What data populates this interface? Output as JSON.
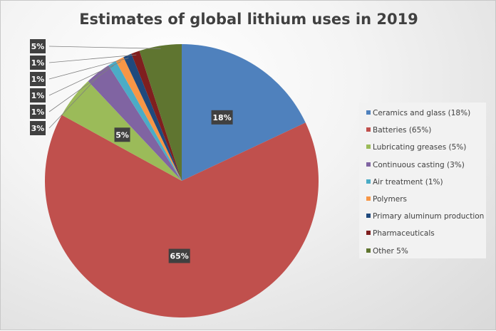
{
  "chart_data": {
    "type": "pie",
    "title": "Estimates of global lithium uses in 2019",
    "start": "top",
    "direction": "clockwise",
    "legend_position": "right",
    "slices": [
      {
        "name": "Ceramics and glass (18%)",
        "value": 18,
        "label": "18%",
        "color": "#4f81bd"
      },
      {
        "name": "Batteries (65%)",
        "value": 65,
        "label": "65%",
        "color": "#c0504d"
      },
      {
        "name": "Lubricating greases (5%)",
        "value": 5,
        "label": "5%",
        "color": "#9bbb59"
      },
      {
        "name": "Continuous casting (3%)",
        "value": 3,
        "label": "3%",
        "color": "#8064a2"
      },
      {
        "name": "Air treatment (1%)",
        "value": 1,
        "label": "1%",
        "color": "#4bacc6"
      },
      {
        "name": "Polymers",
        "value": 1,
        "label": "1%",
        "color": "#f79646"
      },
      {
        "name": "Primary aluminum production",
        "value": 1,
        "label": "1%",
        "color": "#1f497d"
      },
      {
        "name": "Pharmaceuticals",
        "value": 1,
        "label": "1%",
        "color": "#7f1f1f"
      },
      {
        "name": "Other 5%",
        "value": 5,
        "label": "5%",
        "color": "#5f7530"
      }
    ]
  }
}
